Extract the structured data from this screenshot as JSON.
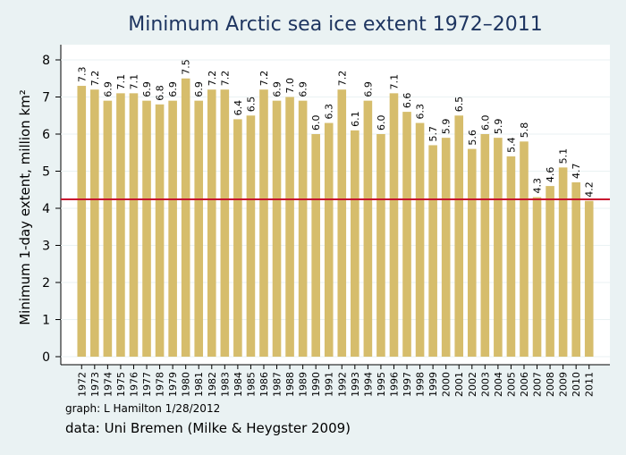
{
  "chart_data": {
    "type": "bar",
    "title": "Minimum Arctic sea ice extent 1972–2011",
    "ylabel": "Minimum 1-day extent, million km²",
    "notes": [
      "graph:  L Hamilton  1/28/2012",
      "data: Uni Bremen (Milke & Heygster 2009)"
    ],
    "categories": [
      "1972",
      "1973",
      "1974",
      "1975",
      "1976",
      "1977",
      "1978",
      "1979",
      "1980",
      "1981",
      "1982",
      "1983",
      "1984",
      "1985",
      "1986",
      "1987",
      "1988",
      "1989",
      "1990",
      "1991",
      "1992",
      "1993",
      "1994",
      "1995",
      "1996",
      "1997",
      "1998",
      "1999",
      "2000",
      "2001",
      "2002",
      "2003",
      "2004",
      "2005",
      "2006",
      "2007",
      "2008",
      "2009",
      "2010",
      "2011"
    ],
    "values": [
      7.3,
      7.2,
      6.9,
      7.1,
      7.1,
      6.9,
      6.8,
      6.9,
      7.5,
      6.9,
      7.2,
      7.2,
      6.4,
      6.5,
      7.2,
      6.9,
      7.0,
      6.9,
      6.0,
      6.3,
      7.2,
      6.1,
      6.9,
      6.0,
      7.1,
      6.6,
      6.3,
      5.7,
      5.9,
      6.5,
      5.6,
      6.0,
      5.9,
      5.4,
      5.8,
      4.3,
      4.6,
      5.1,
      4.7,
      4.2
    ],
    "value_labels": [
      "7.3",
      "7.2",
      "6.9",
      "7.1",
      "7.1",
      "6.9",
      "6.8",
      "6.9",
      "7.5",
      "6.9",
      "7.2",
      "7.2",
      "6.4",
      "6.5",
      "7.2",
      "6.9",
      "7.0",
      "6.9",
      "6.0",
      "6.3",
      "7.2",
      "6.1",
      "6.9",
      "6.0",
      "7.1",
      "6.6",
      "6.3",
      "5.7",
      "5.9",
      "6.5",
      "5.6",
      "6.0",
      "5.9",
      "5.4",
      "5.8",
      "4.3",
      "4.6",
      "5.1",
      "4.7",
      "4.2"
    ],
    "color": "#d6bd6c",
    "reference_line": {
      "value": 4.24,
      "color": "#c8102e"
    },
    "ylim": [
      0,
      8
    ],
    "yticks": [
      0,
      1,
      2,
      3,
      4,
      5,
      6,
      7,
      8
    ],
    "grid": true
  }
}
